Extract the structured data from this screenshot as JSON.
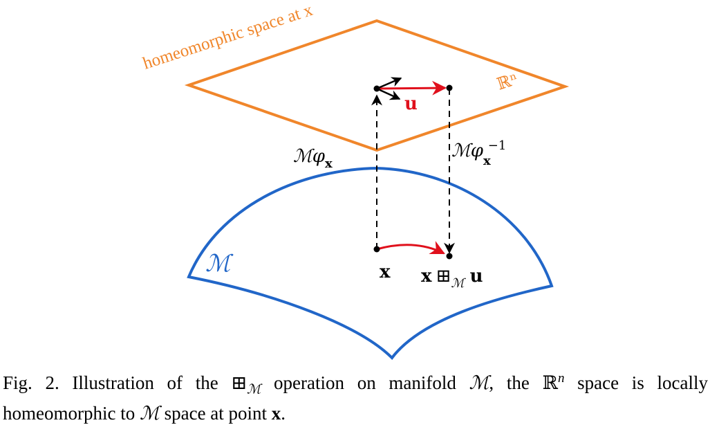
{
  "colors": {
    "plane": "#F0862B",
    "manifold": "#2166C8",
    "vector_u": "#E0101C",
    "black": "#000000"
  },
  "labels": {
    "homeomorphic": "homeomorphic space at x",
    "rn": "ℝⁿ",
    "u": "u",
    "phi": "ℳφ",
    "phi_sub": "x",
    "phi_inv": "ℳφ",
    "phi_inv_sub": "x",
    "phi_inv_sup": "−1",
    "manifold": "ℳ",
    "x": "x",
    "result_x": "x",
    "boxplus": "⊞",
    "boxplus_sub": "ℳ",
    "result_u": "u"
  },
  "caption": {
    "part1": "Fig. 2.  Illustration of the ",
    "op": "⊞",
    "op_sub": "ℳ",
    "part2": " operation on manifold ",
    "m1": "ℳ",
    "part3": ", the ",
    "rn": "ℝ",
    "rn_sup": "n",
    "part4": " space is locally homeomorphic to ",
    "m2": "ℳ",
    "part5": " space at point ",
    "x": "x",
    "part6": "."
  }
}
